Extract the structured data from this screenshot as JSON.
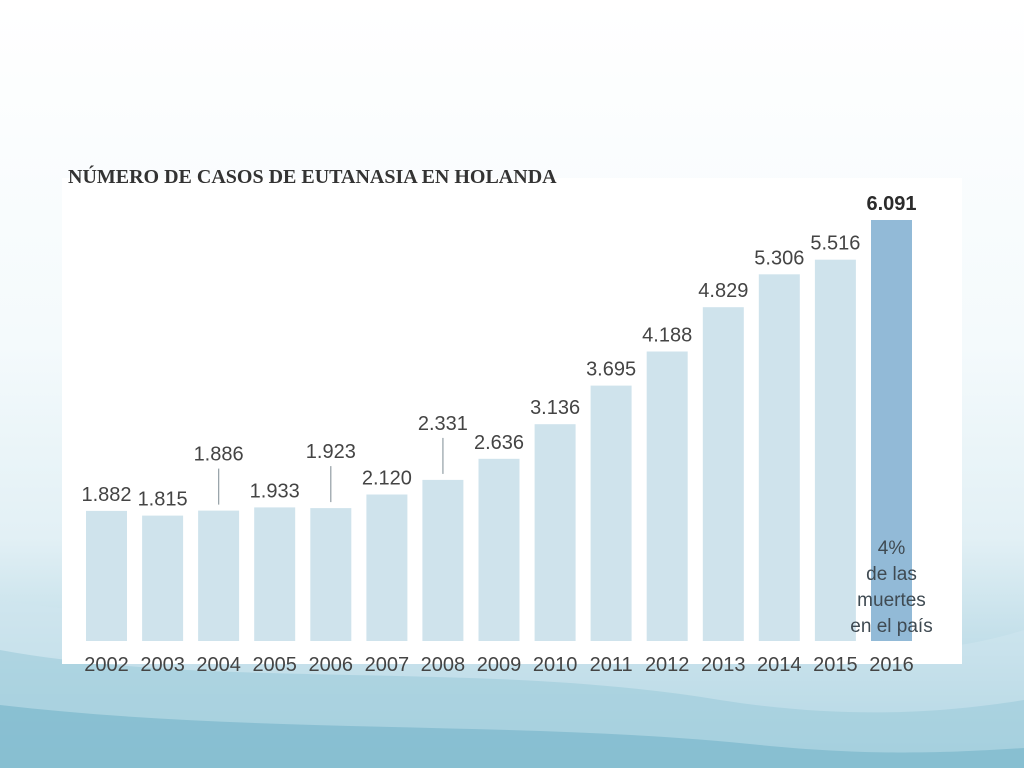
{
  "colors": {
    "bar": "#cfe3ec",
    "bar_highlight": "#92bad7",
    "leader": "#9aa5ab"
  },
  "chart_data": {
    "type": "bar",
    "title": "NÚMERO DE CASOS DE EUTANASIA EN HOLANDA",
    "categories": [
      "2002",
      "2003",
      "2004",
      "2005",
      "2006",
      "2007",
      "2008",
      "2009",
      "2010",
      "2011",
      "2012",
      "2013",
      "2014",
      "2015",
      "2016"
    ],
    "values": [
      1882,
      1815,
      1886,
      1933,
      1923,
      2120,
      2331,
      2636,
      3136,
      3695,
      4188,
      4829,
      5306,
      5516,
      6091
    ],
    "value_labels": [
      "1.882",
      "1.815",
      "1.886",
      "1.933",
      "1.923",
      "2.120",
      "2.331",
      "2.636",
      "3.136",
      "3.695",
      "4.188",
      "4.829",
      "5.306",
      "5.516",
      "6.091"
    ],
    "highlight_category": "2016",
    "annotation": {
      "category": "2016",
      "lines": [
        "4%",
        "de las",
        "muertes",
        "en el país"
      ]
    },
    "ylim": [
      0,
      6091
    ],
    "grid": false,
    "legend": "none",
    "xlabel": "",
    "ylabel": ""
  }
}
